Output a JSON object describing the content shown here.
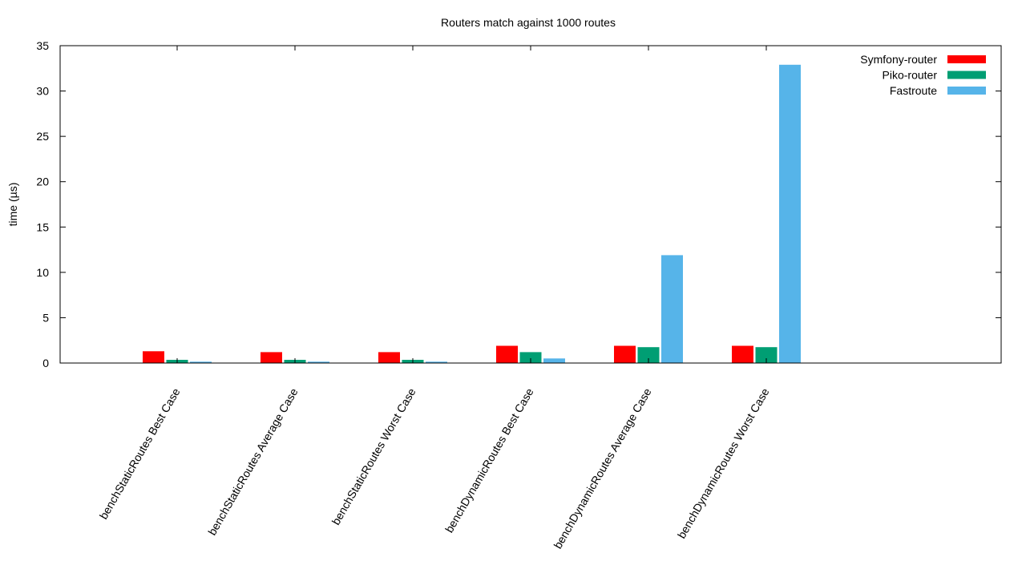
{
  "chart_data": {
    "type": "bar",
    "title": "Routers match against 1000 routes",
    "xlabel": "",
    "ylabel": "time (µs)",
    "ylim": [
      0,
      35
    ],
    "yticks": [
      0,
      5,
      10,
      15,
      20,
      25,
      30,
      35
    ],
    "grid": false,
    "legend_position": "top-right",
    "categories": [
      "benchStaticRoutes Best Case",
      "benchStaticRoutes Average Case",
      "benchStaticRoutes Worst Case",
      "benchDynamicRoutes Best Case",
      "benchDynamicRoutes Average Case",
      "benchDynamicRoutes Worst Case"
    ],
    "series": [
      {
        "name": "Symfony-router",
        "color": "#ff0000",
        "values": [
          1.3,
          1.2,
          1.2,
          1.9,
          1.9,
          1.9
        ]
      },
      {
        "name": "Piko-router",
        "color": "#009e73",
        "values": [
          0.35,
          0.35,
          0.35,
          1.2,
          1.75,
          1.75
        ]
      },
      {
        "name": "Fastroute",
        "color": "#56b4e9",
        "values": [
          0.15,
          0.15,
          0.15,
          0.5,
          11.9,
          32.9
        ]
      }
    ]
  }
}
